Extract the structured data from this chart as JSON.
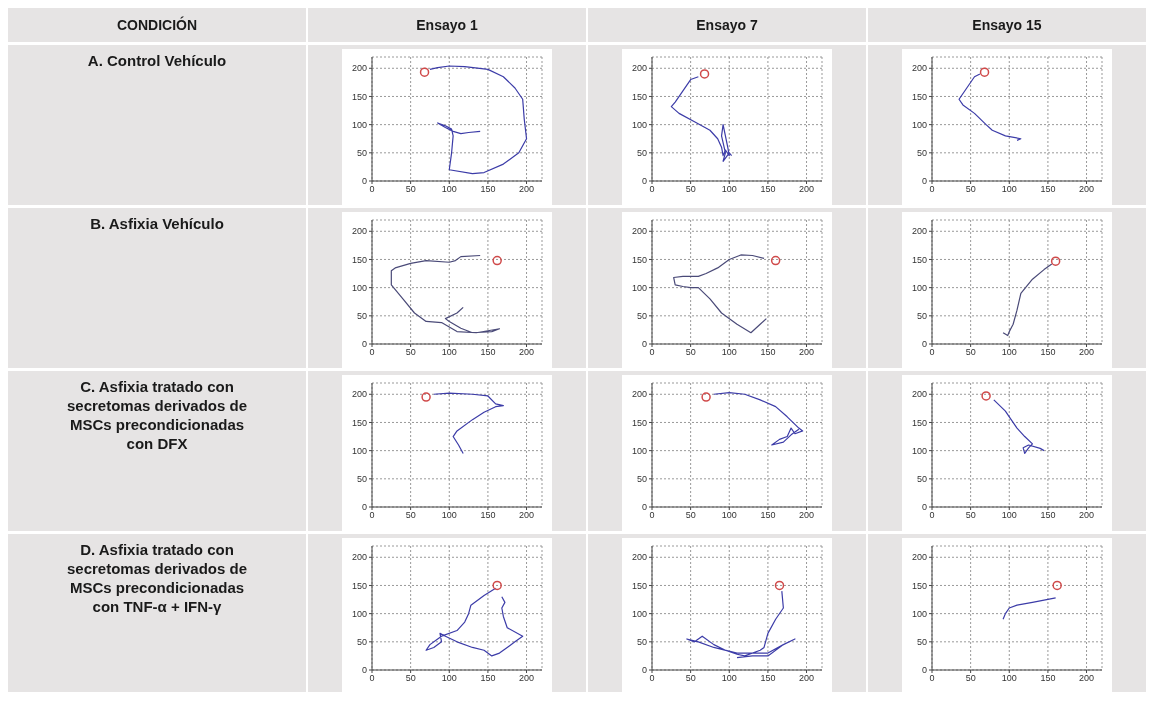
{
  "chart_data": [
    {
      "type": "other",
      "annotations": [
        "CONDICIÓN",
        "Ensayo 1",
        "Ensayo 7",
        "Ensayo 15",
        "A. Control Vehículo",
        "B. Asfixia Vehículo",
        "C. Asfixia tratado con secretomas derivados de MSCs precondicionadas con DFX",
        "D. Asfixia tratado con secretomas derivados de MSCs precondicionadas con TNF-α + IFN-γ"
      ]
    },
    {
      "type": "line",
      "xlim": [
        0,
        220
      ],
      "ylim": [
        0,
        220
      ],
      "xticks": [
        0,
        50,
        100,
        150,
        200
      ],
      "yticks": [
        0,
        50,
        100,
        150,
        200
      ],
      "grid": true,
      "series": [
        {
          "color": "#3c3ca8",
          "marker": "none",
          "x": [
            75,
            85,
            100,
            120,
            150,
            170,
            185,
            195,
            197,
            200,
            190,
            170,
            145,
            130,
            100,
            103,
            105,
            103,
            95,
            85,
            95,
            105,
            115,
            125,
            140
          ],
          "values": [
            198,
            201,
            204,
            203,
            198,
            185,
            165,
            145,
            110,
            75,
            50,
            30,
            15,
            13,
            20,
            50,
            80,
            92,
            98,
            103,
            95,
            88,
            84,
            86,
            88
          ]
        },
        {
          "type": "scatter",
          "color": "#d04a4a",
          "marker": "circle",
          "x": [
            68
          ],
          "values": [
            193
          ]
        }
      ]
    },
    {
      "type": "line",
      "xlim": [
        0,
        220
      ],
      "ylim": [
        0,
        220
      ],
      "xticks": [
        0,
        50,
        100,
        150,
        200
      ],
      "yticks": [
        0,
        50,
        100,
        150,
        200
      ],
      "grid": true,
      "series": [
        {
          "color": "#3c3ca8",
          "marker": "none",
          "x": [
            60,
            50,
            40,
            30,
            25,
            35,
            55,
            75,
            85,
            90,
            92,
            95,
            100,
            98,
            92,
            90,
            95,
            92,
            100,
            103
          ],
          "values": [
            185,
            180,
            160,
            140,
            132,
            120,
            105,
            90,
            75,
            60,
            45,
            55,
            45,
            60,
            100,
            80,
            50,
            35,
            50,
            45
          ]
        },
        {
          "type": "scatter",
          "color": "#d04a4a",
          "marker": "circle",
          "x": [
            68
          ],
          "values": [
            190
          ]
        }
      ]
    },
    {
      "type": "line",
      "xlim": [
        0,
        220
      ],
      "ylim": [
        0,
        220
      ],
      "xticks": [
        0,
        50,
        100,
        150,
        200
      ],
      "yticks": [
        0,
        50,
        100,
        150,
        200
      ],
      "grid": true,
      "series": [
        {
          "color": "#3c3ca8",
          "marker": "none",
          "x": [
            62,
            55,
            45,
            35,
            40,
            55,
            70,
            78,
            95,
            115,
            110
          ],
          "values": [
            190,
            185,
            165,
            145,
            135,
            120,
            100,
            90,
            80,
            75,
            72
          ]
        },
        {
          "type": "scatter",
          "color": "#d04a4a",
          "marker": "circle",
          "x": [
            68
          ],
          "values": [
            193
          ]
        }
      ]
    },
    {
      "type": "line",
      "xlim": [
        0,
        220
      ],
      "ylim": [
        0,
        220
      ],
      "xticks": [
        0,
        50,
        100,
        150,
        200
      ],
      "yticks": [
        0,
        50,
        100,
        150,
        200
      ],
      "grid": true,
      "series": [
        {
          "color": "#4a4a78",
          "marker": "none",
          "x": [
            140,
            115,
            108,
            100,
            70,
            50,
            30,
            25,
            25,
            40,
            55,
            70,
            90,
            100,
            110,
            135,
            165,
            155,
            130,
            115,
            100,
            95,
            110,
            118
          ],
          "values": [
            157,
            155,
            148,
            145,
            148,
            143,
            135,
            130,
            105,
            80,
            55,
            40,
            38,
            30,
            22,
            20,
            27,
            22,
            20,
            28,
            40,
            45,
            55,
            65
          ]
        },
        {
          "type": "scatter",
          "color": "#d04a4a",
          "marker": "circle",
          "x": [
            162
          ],
          "values": [
            148
          ]
        }
      ]
    },
    {
      "type": "line",
      "xlim": [
        0,
        220
      ],
      "ylim": [
        0,
        220
      ],
      "xticks": [
        0,
        50,
        100,
        150,
        200
      ],
      "yticks": [
        0,
        50,
        100,
        150,
        200
      ],
      "grid": true,
      "series": [
        {
          "color": "#4a4a78",
          "marker": "none",
          "x": [
            145,
            130,
            115,
            100,
            85,
            70,
            60,
            40,
            28,
            30,
            40,
            50,
            60,
            75,
            90,
            110,
            128,
            140,
            148
          ],
          "values": [
            152,
            157,
            158,
            150,
            135,
            125,
            120,
            120,
            118,
            105,
            102,
            100,
            100,
            80,
            55,
            35,
            20,
            35,
            45
          ]
        },
        {
          "type": "scatter",
          "color": "#d04a4a",
          "marker": "circle",
          "x": [
            160
          ],
          "values": [
            148
          ]
        }
      ]
    },
    {
      "type": "line",
      "xlim": [
        0,
        220
      ],
      "ylim": [
        0,
        220
      ],
      "xticks": [
        0,
        50,
        100,
        150,
        200
      ],
      "yticks": [
        0,
        50,
        100,
        150,
        200
      ],
      "grid": true,
      "series": [
        {
          "color": "#4a4a78",
          "marker": "none",
          "x": [
            155,
            145,
            130,
            115,
            110,
            105,
            100,
            98,
            92
          ],
          "values": [
            142,
            132,
            115,
            90,
            60,
            35,
            22,
            15,
            20
          ]
        },
        {
          "type": "scatter",
          "color": "#d04a4a",
          "marker": "circle",
          "x": [
            160
          ],
          "values": [
            147
          ]
        }
      ]
    },
    {
      "type": "line",
      "xlim": [
        0,
        220
      ],
      "ylim": [
        0,
        220
      ],
      "xticks": [
        0,
        50,
        100,
        150,
        200
      ],
      "yticks": [
        0,
        50,
        100,
        150,
        200
      ],
      "grid": true,
      "series": [
        {
          "color": "#3c3ca8",
          "marker": "none",
          "x": [
            80,
            100,
            130,
            150,
            160,
            170,
            160,
            145,
            130,
            110,
            105,
            112,
            118
          ],
          "values": [
            200,
            202,
            200,
            197,
            183,
            180,
            178,
            168,
            155,
            135,
            125,
            110,
            95
          ]
        },
        {
          "type": "scatter",
          "color": "#d04a4a",
          "marker": "circle",
          "x": [
            70
          ],
          "values": [
            195
          ]
        }
      ]
    },
    {
      "type": "line",
      "xlim": [
        0,
        220
      ],
      "ylim": [
        0,
        220
      ],
      "xticks": [
        0,
        50,
        100,
        150,
        200
      ],
      "yticks": [
        0,
        50,
        100,
        150,
        200
      ],
      "grid": true,
      "series": [
        {
          "color": "#3c3ca8",
          "marker": "none",
          "x": [
            80,
            100,
            120,
            140,
            160,
            175,
            190,
            195,
            185,
            180,
            175,
            165,
            155,
            170,
            180,
            190
          ],
          "values": [
            200,
            203,
            200,
            190,
            178,
            160,
            140,
            135,
            130,
            140,
            125,
            120,
            110,
            115,
            128,
            138
          ]
        },
        {
          "type": "scatter",
          "color": "#d04a4a",
          "marker": "circle",
          "x": [
            70
          ],
          "values": [
            195
          ]
        }
      ]
    },
    {
      "type": "line",
      "xlim": [
        0,
        220
      ],
      "ylim": [
        0,
        220
      ],
      "xticks": [
        0,
        50,
        100,
        150,
        200
      ],
      "yticks": [
        0,
        50,
        100,
        150,
        200
      ],
      "grid": true,
      "series": [
        {
          "color": "#3c3ca8",
          "marker": "none",
          "x": [
            80,
            95,
            100,
            110,
            120,
            130,
            125,
            120,
            118,
            125,
            140,
            145
          ],
          "values": [
            190,
            170,
            160,
            140,
            125,
            112,
            105,
            95,
            105,
            110,
            104,
            100
          ]
        },
        {
          "type": "scatter",
          "color": "#d04a4a",
          "marker": "circle",
          "x": [
            70
          ],
          "values": [
            197
          ]
        }
      ]
    },
    {
      "type": "line",
      "xlim": [
        0,
        220
      ],
      "ylim": [
        0,
        220
      ],
      "xticks": [
        0,
        50,
        100,
        150,
        200
      ],
      "yticks": [
        0,
        50,
        100,
        150,
        200
      ],
      "grid": true,
      "series": [
        {
          "color": "#3c3ca8",
          "marker": "none",
          "x": [
            160,
            145,
            128,
            125,
            120,
            110,
            90,
            85,
            75,
            70,
            80,
            90,
            88,
            95,
            110,
            130,
            145,
            155,
            165,
            185,
            195,
            175,
            170,
            168,
            172,
            168
          ],
          "values": [
            145,
            132,
            115,
            100,
            85,
            70,
            60,
            55,
            45,
            35,
            40,
            50,
            65,
            60,
            50,
            40,
            35,
            25,
            30,
            50,
            60,
            75,
            95,
            110,
            120,
            130
          ]
        },
        {
          "type": "scatter",
          "color": "#d04a4a",
          "marker": "circle",
          "x": [
            162
          ],
          "values": [
            150
          ]
        }
      ]
    },
    {
      "type": "line",
      "xlim": [
        0,
        220
      ],
      "ylim": [
        0,
        220
      ],
      "xticks": [
        0,
        50,
        100,
        150,
        200
      ],
      "yticks": [
        0,
        50,
        100,
        150,
        200
      ],
      "grid": true,
      "series": [
        {
          "color": "#3c3ca8",
          "marker": "none",
          "x": [
            168,
            170,
            160,
            150,
            145,
            140,
            120,
            110,
            95,
            80,
            65,
            55,
            45,
            60,
            80,
            110,
            150,
            170,
            185,
            170,
            150,
            130,
            110
          ],
          "values": [
            140,
            110,
            90,
            65,
            40,
            35,
            25,
            28,
            35,
            45,
            60,
            50,
            55,
            50,
            40,
            30,
            30,
            45,
            55,
            45,
            25,
            25,
            22
          ]
        },
        {
          "type": "scatter",
          "color": "#d04a4a",
          "marker": "circle",
          "x": [
            165
          ],
          "values": [
            150
          ]
        }
      ]
    },
    {
      "type": "line",
      "xlim": [
        0,
        220
      ],
      "ylim": [
        0,
        220
      ],
      "xticks": [
        0,
        50,
        100,
        150,
        200
      ],
      "yticks": [
        0,
        50,
        100,
        150,
        200
      ],
      "grid": true,
      "series": [
        {
          "color": "#3c3ca8",
          "marker": "none",
          "x": [
            160,
            130,
            110,
            100,
            95,
            92
          ],
          "values": [
            128,
            120,
            115,
            110,
            100,
            90
          ]
        },
        {
          "type": "scatter",
          "color": "#d04a4a",
          "marker": "circle",
          "x": [
            162
          ],
          "values": [
            150
          ]
        }
      ]
    }
  ]
}
